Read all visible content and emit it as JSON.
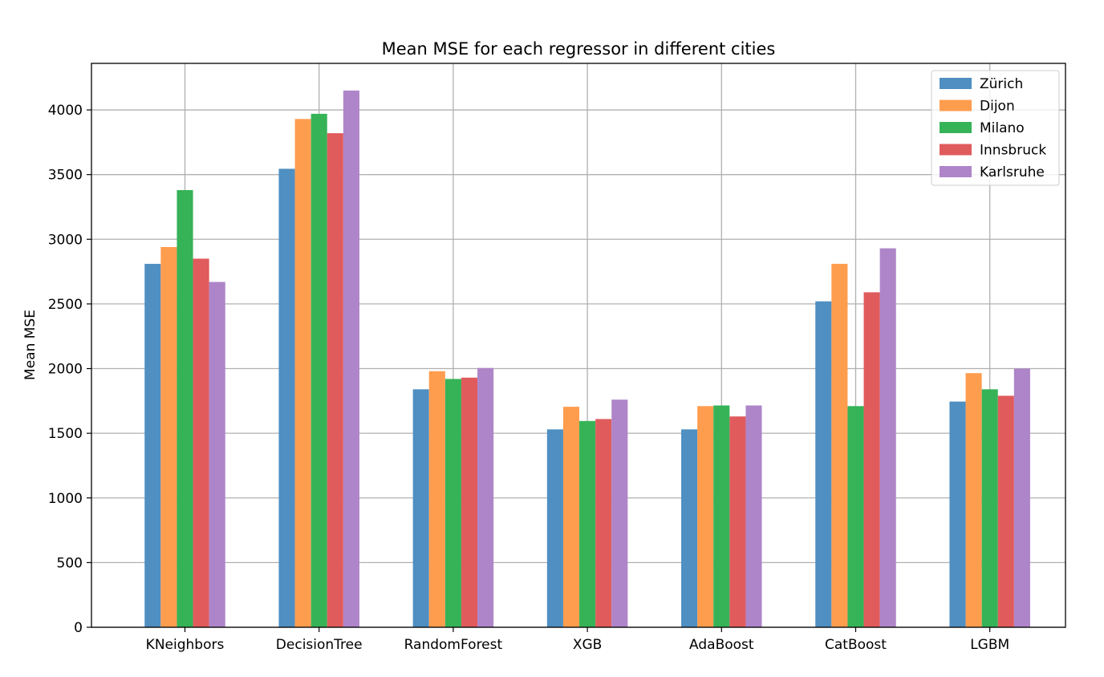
{
  "chart_data": {
    "type": "bar",
    "title": "Mean MSE for each regressor in different cities",
    "xlabel": "",
    "ylabel": "Mean MSE",
    "ylim": [
      0,
      4360
    ],
    "yticks": [
      0,
      500,
      1000,
      1500,
      2000,
      2500,
      3000,
      3500,
      4000
    ],
    "grid": true,
    "legend_position": "top-right",
    "categories": [
      "KNeighbors",
      "DecisionTree",
      "RandomForest",
      "XGB",
      "AdaBoost",
      "CatBoost",
      "LGBM"
    ],
    "series": [
      {
        "name": "Zürich",
        "color": "#4f8fc2",
        "values": [
          2810,
          3545,
          1840,
          1530,
          1530,
          2520,
          1745
        ]
      },
      {
        "name": "Dijon",
        "color": "#ff9d4f",
        "values": [
          2940,
          3930,
          1980,
          1705,
          1710,
          2810,
          1965
        ]
      },
      {
        "name": "Milano",
        "color": "#36b357",
        "values": [
          3380,
          3970,
          1920,
          1595,
          1715,
          1710,
          1840
        ]
      },
      {
        "name": "Innsbruck",
        "color": "#e05b5c",
        "values": [
          2850,
          3820,
          1930,
          1610,
          1630,
          2590,
          1790
        ]
      },
      {
        "name": "Karlsruhe",
        "color": "#ae85c9",
        "values": [
          2670,
          4150,
          2005,
          1760,
          1715,
          2930,
          2000
        ]
      }
    ]
  }
}
